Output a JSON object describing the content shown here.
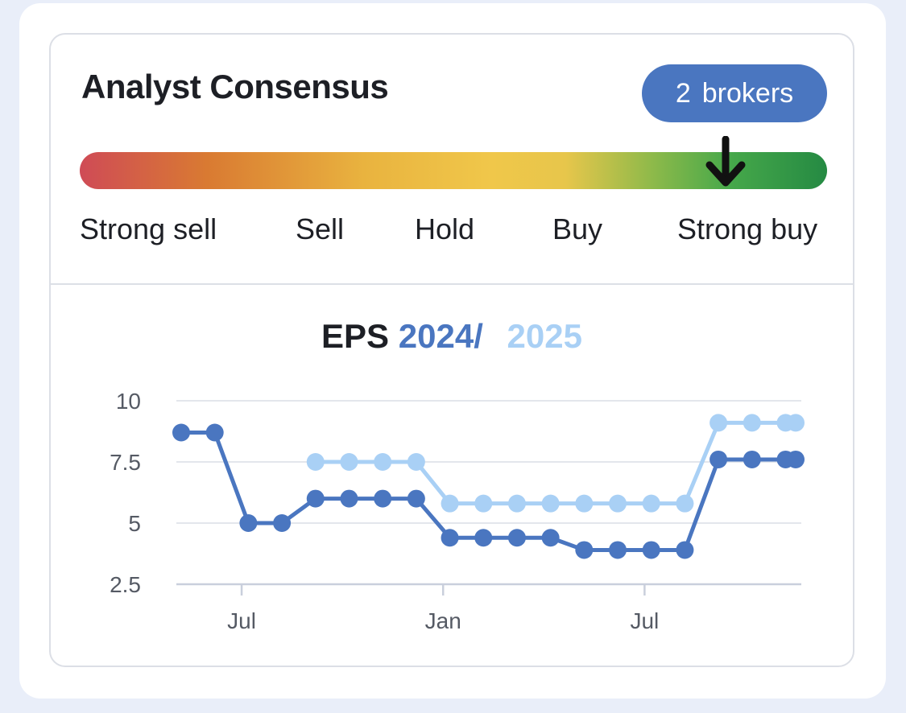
{
  "consensus": {
    "title": "Analyst Consensus",
    "brokers_count": "2",
    "brokers_label": "brokers",
    "scale_labels": [
      "Strong sell",
      "Sell",
      "Hold",
      "Buy",
      "Strong buy"
    ],
    "rating_position": 0.86,
    "badge_color": "#4a76c0"
  },
  "chart_title": {
    "prefix": "EPS",
    "year1": "2024",
    "separator": "/",
    "year2": "2025"
  },
  "chart_data": {
    "type": "line",
    "title": "EPS 2024 / 2025",
    "xlabel": "",
    "ylabel": "",
    "ylim": [
      2.5,
      10
    ],
    "yticks": [
      "10",
      "7.5",
      "5",
      "2.5"
    ],
    "ytick_values": [
      10,
      7.5,
      5,
      2.5
    ],
    "x_tick_labels": [
      "Jul",
      "Jan",
      "Jul"
    ],
    "x_tick_values": [
      1.8,
      7.8,
      13.8
    ],
    "xlim": [
      0,
      18.3
    ],
    "grid": true,
    "series": [
      {
        "name": "2024",
        "color": "#4a76c0",
        "x": [
          0,
          1,
          2,
          3,
          4,
          5,
          6,
          7,
          8,
          9,
          10,
          11,
          12,
          13,
          14,
          15,
          16,
          17,
          18,
          18.3
        ],
        "values": [
          8.7,
          8.7,
          5.0,
          5.0,
          6.0,
          6.0,
          6.0,
          6.0,
          4.4,
          4.4,
          4.4,
          4.4,
          3.9,
          3.9,
          3.9,
          3.9,
          7.6,
          7.6,
          7.6,
          7.6
        ]
      },
      {
        "name": "2025",
        "color": "#a9d0f5",
        "x": [
          4,
          5,
          6,
          7,
          8,
          9,
          10,
          11,
          12,
          13,
          14,
          15,
          16,
          17,
          18,
          18.3
        ],
        "values": [
          7.5,
          7.5,
          7.5,
          7.5,
          5.8,
          5.8,
          5.8,
          5.8,
          5.8,
          5.8,
          5.8,
          5.8,
          9.1,
          9.1,
          9.1,
          9.1
        ]
      }
    ]
  }
}
